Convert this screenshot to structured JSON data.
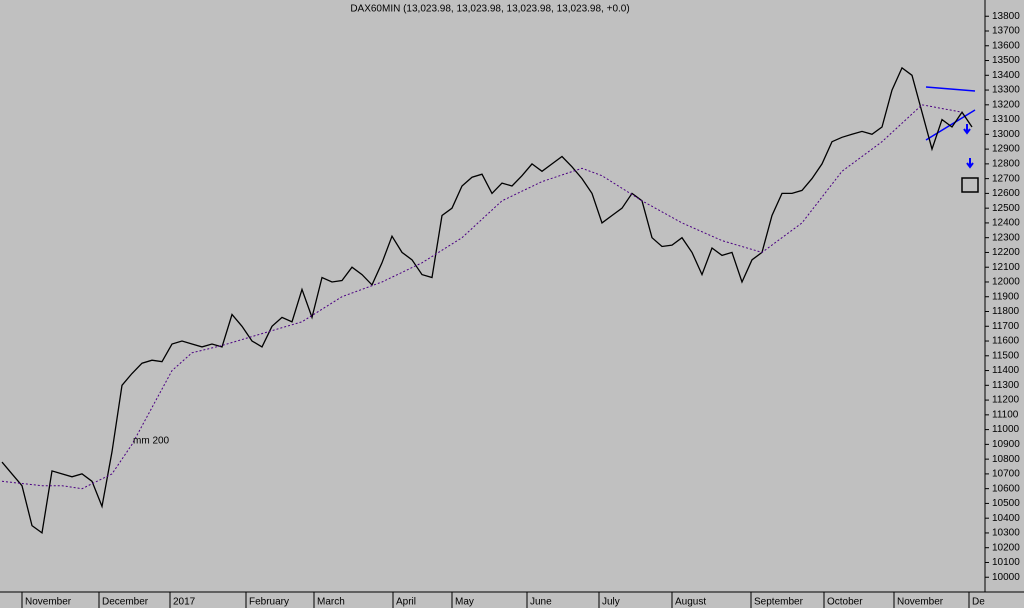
{
  "chart_data": {
    "type": "line",
    "title": "DAX60MIN (13,023.98, 13,023.98, 13,023.98, 13,023.98, +0.0)",
    "annotation": "mm 200",
    "ylim": [
      9900,
      13910
    ],
    "yticks": [
      10000,
      10100,
      10200,
      10300,
      10400,
      10500,
      10600,
      10700,
      10800,
      10900,
      11000,
      11100,
      11200,
      11300,
      11400,
      11500,
      11600,
      11700,
      11800,
      11900,
      12000,
      12100,
      12200,
      12300,
      12400,
      12500,
      12600,
      12700,
      12800,
      12900,
      13000,
      13100,
      13200,
      13300,
      13400,
      13500,
      13600,
      13700,
      13800
    ],
    "xlim": [
      -0.2,
      98.3
    ],
    "xticks": [
      {
        "value": 2,
        "label": "November"
      },
      {
        "value": 9.7,
        "label": "December"
      },
      {
        "value": 16.8,
        "label": "2017"
      },
      {
        "value": 24.4,
        "label": "February"
      },
      {
        "value": 31.2,
        "label": "March"
      },
      {
        "value": 39.1,
        "label": "April"
      },
      {
        "value": 45,
        "label": "May"
      },
      {
        "value": 52.5,
        "label": "June"
      },
      {
        "value": 59.7,
        "label": "July"
      },
      {
        "value": 67,
        "label": "August"
      },
      {
        "value": 74.9,
        "label": "September"
      },
      {
        "value": 82.2,
        "label": "October"
      },
      {
        "value": 89.2,
        "label": "November"
      },
      {
        "value": 96.7,
        "label": "De"
      }
    ],
    "series": [
      {
        "color": "#000000",
        "values": [
          10780,
          10700,
          10620,
          10350,
          10300,
          10720,
          10700,
          10680,
          10700,
          10650,
          10480,
          10850,
          11300,
          11380,
          11450,
          11470,
          11460,
          11580,
          11600,
          11580,
          11560,
          11580,
          11560,
          11780,
          11700,
          11600,
          11560,
          11700,
          11760,
          11730,
          11950,
          11760,
          12030,
          12000,
          12010,
          12100,
          12050,
          11980,
          12130,
          12310,
          12200,
          12150,
          12050,
          12030,
          12450,
          12500,
          12650,
          12710,
          12730,
          12600,
          12670,
          12650,
          12720,
          12800,
          12750,
          12800,
          12850,
          12780,
          12700,
          12600,
          12400,
          12450,
          12500,
          12600,
          12550,
          12300,
          12240,
          12250,
          12300,
          12200,
          12050,
          12230,
          12180,
          12200,
          12000,
          12150,
          12200,
          12450,
          12600,
          12600,
          12620,
          12700,
          12800,
          12950,
          12980,
          13000,
          13020,
          13000,
          13050,
          13300,
          13450,
          13400,
          13150,
          12900,
          13100,
          13050,
          13150,
          13050
        ]
      },
      {
        "color": "#4b0082",
        "x": [
          0,
          4,
          6,
          8,
          11,
          13,
          15,
          17,
          19,
          22,
          26,
          30,
          34,
          38,
          42,
          46,
          50,
          54,
          58,
          60,
          64,
          68,
          72,
          76,
          80,
          84,
          88,
          92,
          96
        ],
        "values": [
          10650,
          10620,
          10620,
          10600,
          10700,
          10900,
          11150,
          11400,
          11520,
          11570,
          11650,
          11730,
          11900,
          12000,
          12130,
          12300,
          12550,
          12680,
          12770,
          12720,
          12550,
          12400,
          12280,
          12200,
          12400,
          12750,
          12950,
          13200,
          13150
        ]
      }
    ]
  }
}
